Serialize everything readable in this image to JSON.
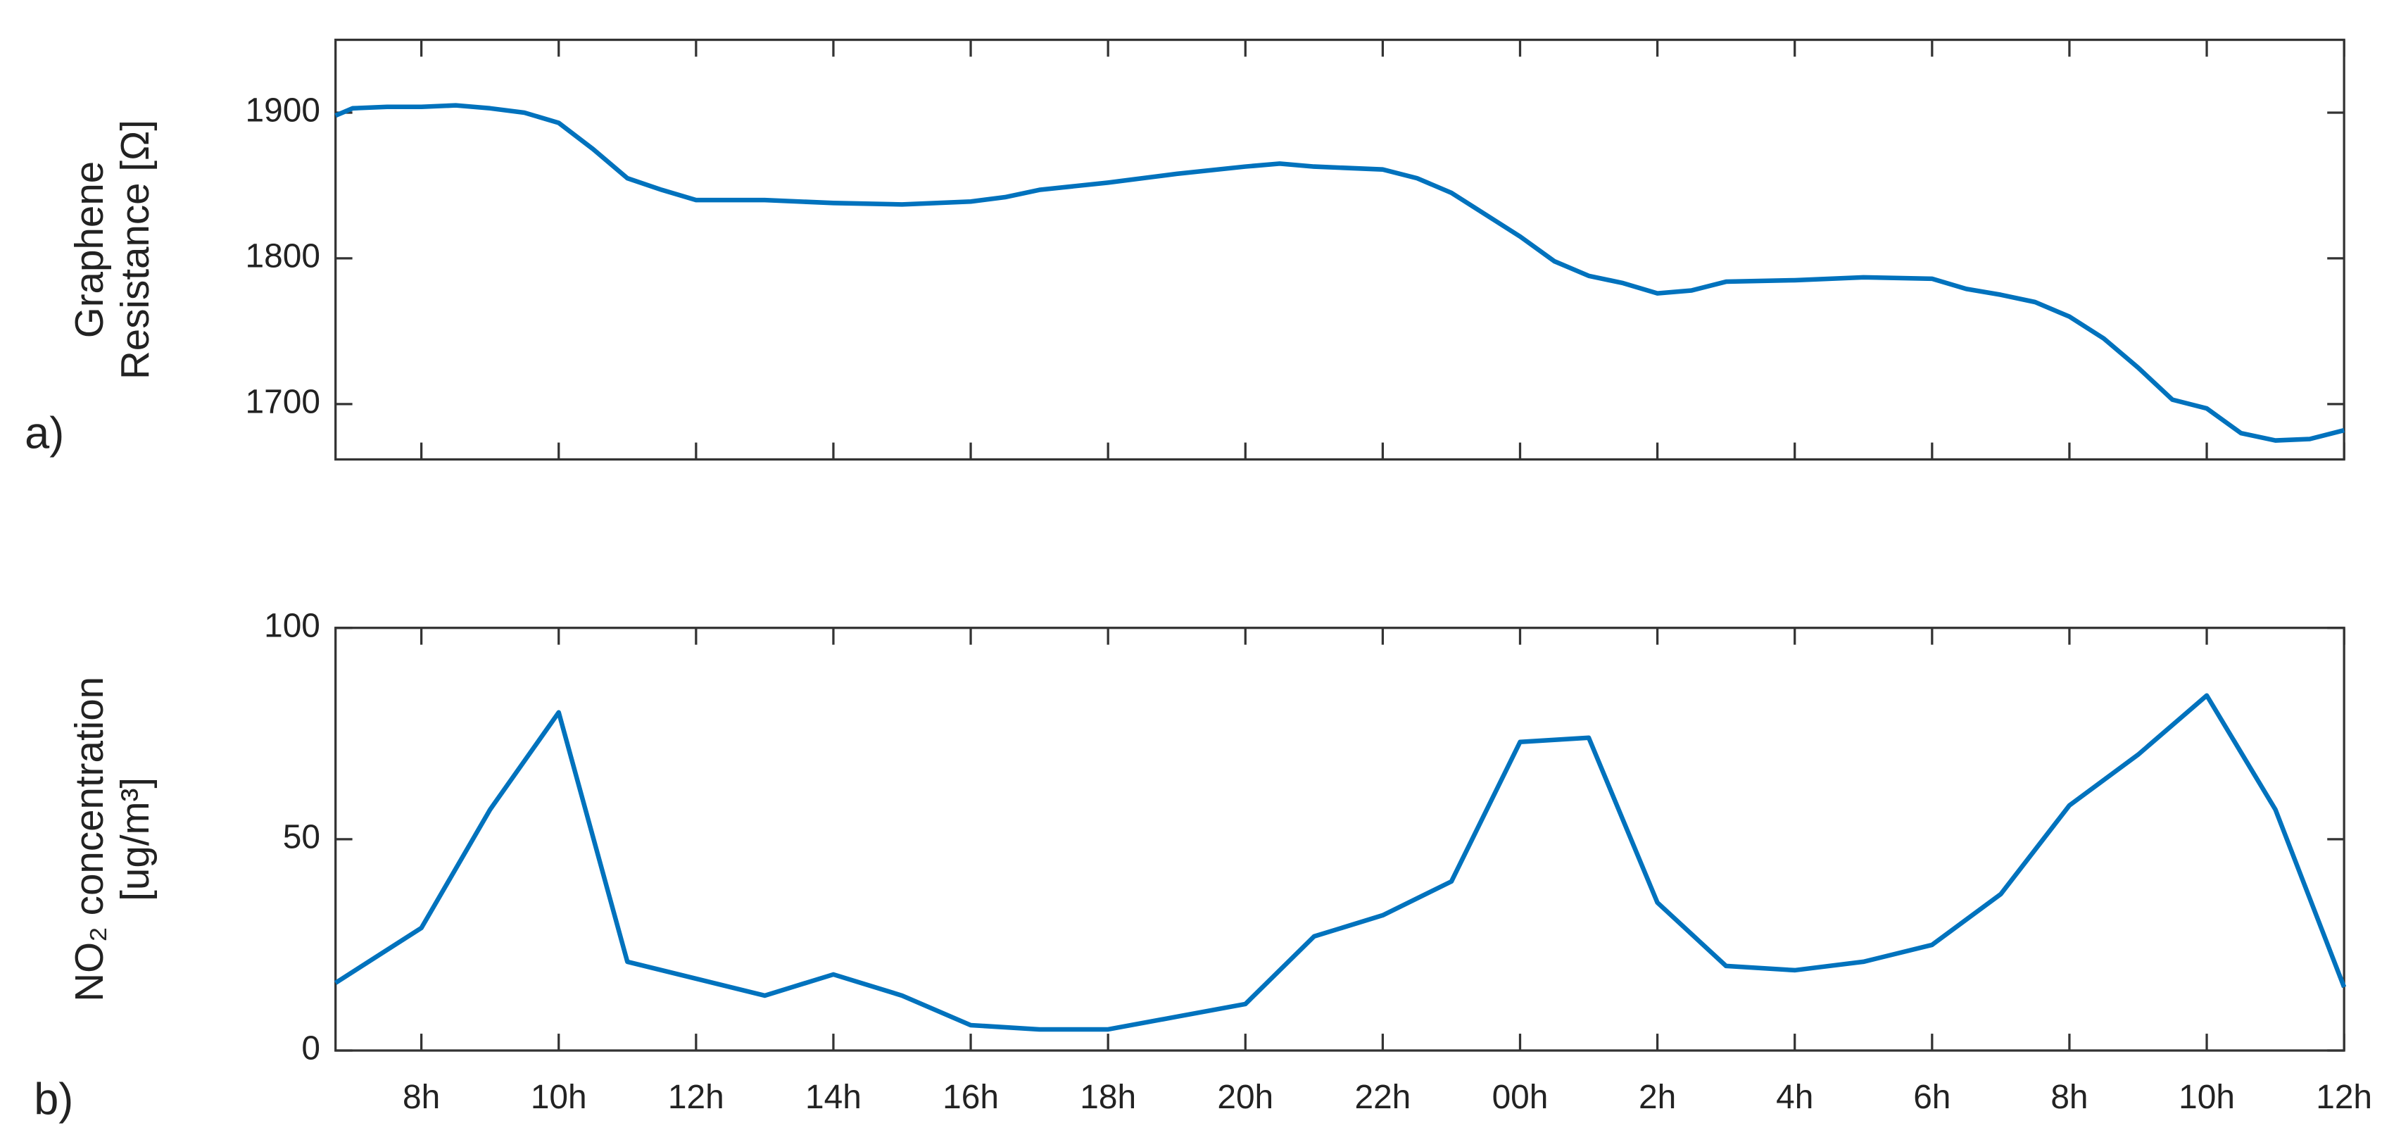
{
  "chart_data": [
    {
      "type": "line",
      "panel_label": "a)",
      "ylabel": [
        "Graphene",
        "Resistance [Ω]"
      ],
      "color": "#0072bd",
      "x": [
        6.75,
        7,
        7.5,
        8,
        8.5,
        9,
        9.5,
        10,
        10.5,
        11,
        11.5,
        12,
        13,
        14,
        15,
        16,
        16.5,
        17,
        18,
        19,
        20,
        20.5,
        21,
        22,
        22.5,
        23,
        23.5,
        24,
        24.5,
        25,
        25.5,
        26,
        26.5,
        27,
        28,
        29,
        30,
        30.5,
        31,
        31.5,
        32,
        32.5,
        33,
        33.5,
        34,
        34.5,
        35,
        35.5,
        36
      ],
      "values": [
        1898,
        1903,
        1904,
        1904,
        1905,
        1903,
        1900,
        1893,
        1875,
        1855,
        1847,
        1840,
        1840,
        1838,
        1837,
        1839,
        1842,
        1847,
        1852,
        1858,
        1863,
        1865,
        1863,
        1861,
        1855,
        1845,
        1830,
        1815,
        1798,
        1788,
        1783,
        1776,
        1778,
        1784,
        1785,
        1787,
        1786,
        1779,
        1775,
        1770,
        1760,
        1745,
        1725,
        1703,
        1697,
        1680,
        1675,
        1676,
        1682
      ],
      "xlim": [
        6.75,
        36
      ],
      "ylim": [
        1662,
        1950
      ],
      "yticks": [
        1700,
        1800,
        1900
      ]
    },
    {
      "type": "line",
      "panel_label": "b)",
      "ylabel": [
        "NO₂ concentration",
        "[ug/m³]"
      ],
      "color": "#0072bd",
      "x": [
        6.75,
        8,
        9,
        10,
        11,
        12,
        13,
        14,
        15,
        16,
        17,
        18,
        19,
        20,
        21,
        22,
        23,
        24,
        25,
        26,
        27,
        28,
        29,
        30,
        31,
        32,
        33,
        34,
        35,
        36
      ],
      "values": [
        16,
        29,
        57,
        80,
        21,
        17,
        13,
        18,
        13,
        6,
        5,
        5,
        8,
        11,
        27,
        32,
        40,
        73,
        74,
        35,
        20,
        19,
        21,
        25,
        37,
        58,
        70,
        84,
        57,
        15
      ],
      "xlim": [
        6.75,
        36
      ],
      "ylim": [
        0,
        100
      ],
      "yticks": [
        0,
        50,
        100
      ],
      "xticks": [
        {
          "value": 8,
          "label": "8h"
        },
        {
          "value": 10,
          "label": "10h"
        },
        {
          "value": 12,
          "label": "12h"
        },
        {
          "value": 14,
          "label": "14h"
        },
        {
          "value": 16,
          "label": "16h"
        },
        {
          "value": 18,
          "label": "18h"
        },
        {
          "value": 20,
          "label": "20h"
        },
        {
          "value": 22,
          "label": "22h"
        },
        {
          "value": 24,
          "label": "00h"
        },
        {
          "value": 26,
          "label": "2h"
        },
        {
          "value": 28,
          "label": "4h"
        },
        {
          "value": 30,
          "label": "6h"
        },
        {
          "value": 32,
          "label": "8h"
        },
        {
          "value": 34,
          "label": "10h"
        },
        {
          "value": 36,
          "label": "12h"
        }
      ]
    }
  ]
}
